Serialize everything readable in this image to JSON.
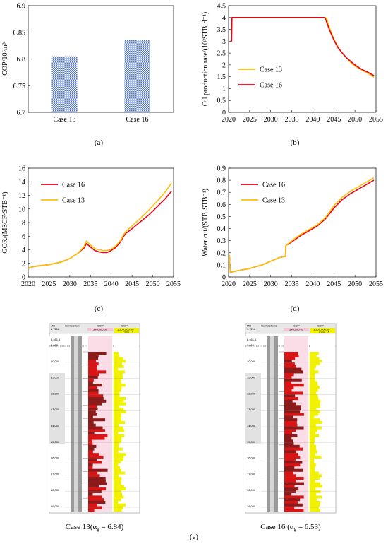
{
  "chart_data": [
    {
      "panel": "(a)",
      "type": "bar",
      "title": "",
      "ylabel": "COP/10⁶m³",
      "xlabel": "",
      "categories": [
        "Case 13",
        "Case 16"
      ],
      "values": [
        6.805,
        6.836
      ],
      "ylim": [
        6.7,
        6.9
      ],
      "yticks": [
        "6.7",
        "6.75",
        "6.8",
        "6.85",
        "6.9"
      ],
      "color": "#4a6fc5",
      "fill_pattern": "checkered",
      "grid": false
    },
    {
      "panel": "(b)",
      "type": "line",
      "ylabel": "Oil production rate/(10³STB·d⁻¹)",
      "xlabel": "",
      "xlim": [
        2020,
        2055
      ],
      "ylim": [
        0,
        4.5
      ],
      "xticks": [
        "2020",
        "2025",
        "2030",
        "2035",
        "2040",
        "2045",
        "2050",
        "2055"
      ],
      "yticks": [
        "0",
        "0.5",
        "1",
        "1.5",
        "2",
        "2.5",
        "3",
        "3.5",
        "4",
        "4.5"
      ],
      "legend_position": "left",
      "series": [
        {
          "name": "Case 13",
          "color": "#ffc000",
          "x": [
            2020.4,
            2020.7,
            2020.8,
            2043.0,
            2043.3,
            2044,
            2045,
            2046,
            2047,
            2048,
            2049,
            2050,
            2051,
            2052,
            2053,
            2054,
            2054.5
          ],
          "y": [
            3.0,
            3.0,
            4.0,
            4.0,
            3.95,
            3.55,
            3.1,
            2.75,
            2.5,
            2.3,
            2.1,
            1.95,
            1.85,
            1.75,
            1.65,
            1.55,
            1.48
          ]
        },
        {
          "name": "Case 16",
          "color": "#e8001c",
          "x": [
            2020.4,
            2020.7,
            2020.8,
            2042.8,
            2043.1,
            2044,
            2045,
            2046,
            2047,
            2048,
            2049,
            2050,
            2051,
            2052,
            2053,
            2054,
            2054.5
          ],
          "y": [
            3.0,
            3.0,
            4.0,
            4.0,
            3.9,
            3.45,
            3.05,
            2.72,
            2.5,
            2.3,
            2.15,
            2.0,
            1.88,
            1.78,
            1.7,
            1.6,
            1.55
          ]
        }
      ]
    },
    {
      "panel": "(c)",
      "type": "line",
      "ylabel": "GOR/(MSCF·STB⁻¹)",
      "xlabel": "",
      "xlim": [
        2020,
        2055
      ],
      "ylim": [
        0,
        16
      ],
      "xticks": [
        "2020",
        "2025",
        "2030",
        "2035",
        "2040",
        "2045",
        "2050",
        "2055"
      ],
      "yticks": [
        "0",
        "2",
        "4",
        "6",
        "8",
        "10",
        "12",
        "14",
        "16"
      ],
      "legend_position": "top-left",
      "series": [
        {
          "name": "Case 16",
          "color": "#e8001c",
          "x": [
            2020,
            2020.5,
            2022,
            2025,
            2028,
            2030,
            2032,
            2033.5,
            2034,
            2035,
            2036,
            2037,
            2038,
            2039,
            2040,
            2041,
            2042,
            2043,
            2043.5,
            2045,
            2047,
            2049,
            2051,
            2053,
            2054.5
          ],
          "y": [
            1.2,
            1.4,
            1.6,
            1.8,
            2.2,
            2.7,
            3.5,
            4.3,
            4.9,
            4.4,
            3.9,
            3.7,
            3.6,
            3.6,
            3.9,
            4.3,
            5.0,
            6.0,
            6.4,
            7.1,
            8.1,
            9.1,
            10.3,
            11.5,
            12.6
          ]
        },
        {
          "name": "Case 13",
          "color": "#ffc000",
          "x": [
            2020,
            2020.5,
            2022,
            2025,
            2028,
            2030,
            2032,
            2033.5,
            2034,
            2035,
            2036,
            2037,
            2038,
            2039,
            2040,
            2041,
            2042,
            2043,
            2043.5,
            2045,
            2047,
            2049,
            2051,
            2053,
            2054.5
          ],
          "y": [
            1.2,
            1.4,
            1.6,
            1.8,
            2.2,
            2.7,
            3.5,
            4.5,
            5.3,
            4.7,
            4.2,
            4.0,
            3.9,
            3.9,
            4.1,
            4.5,
            5.2,
            6.2,
            6.7,
            7.5,
            8.6,
            9.8,
            11.1,
            12.5,
            13.8
          ]
        }
      ]
    },
    {
      "panel": "(d)",
      "type": "line",
      "ylabel": "Water cut/(STB·STB⁻¹)",
      "xlabel": "",
      "xlim": [
        2020,
        2055
      ],
      "ylim": [
        0,
        0.9
      ],
      "xticks": [
        "2020",
        "2025",
        "2030",
        "2035",
        "2040",
        "2045",
        "2050",
        "2055"
      ],
      "yticks": [
        "0",
        "0.1",
        "0.2",
        "0.3",
        "0.4",
        "0.5",
        "0.6",
        "0.7",
        "0.8",
        "0.9"
      ],
      "legend_position": "top-left",
      "series": [
        {
          "name": "Case 16",
          "color": "#e8001c",
          "x": [
            2020.2,
            2020.4,
            2020.6,
            2022,
            2025,
            2028,
            2030,
            2032,
            2033.5,
            2033.6,
            2035,
            2037,
            2039,
            2041,
            2043,
            2045,
            2047,
            2049,
            2051,
            2053,
            2054.5
          ],
          "y": [
            0.18,
            0.04,
            0.04,
            0.05,
            0.07,
            0.1,
            0.13,
            0.16,
            0.17,
            0.26,
            0.29,
            0.34,
            0.38,
            0.42,
            0.48,
            0.57,
            0.64,
            0.69,
            0.73,
            0.77,
            0.8
          ]
        },
        {
          "name": "Case 13",
          "color": "#ffc000",
          "x": [
            2020.2,
            2020.4,
            2020.6,
            2022,
            2025,
            2028,
            2030,
            2032,
            2033.5,
            2033.6,
            2035,
            2037,
            2039,
            2041,
            2043,
            2045,
            2047,
            2049,
            2051,
            2053,
            2054.5
          ],
          "y": [
            0.18,
            0.04,
            0.04,
            0.05,
            0.07,
            0.1,
            0.13,
            0.16,
            0.17,
            0.26,
            0.3,
            0.35,
            0.39,
            0.43,
            0.49,
            0.59,
            0.66,
            0.71,
            0.75,
            0.79,
            0.82
          ]
        }
      ]
    }
  ],
  "panel_labels": [
    "(a)",
    "(b)",
    "(c)",
    "(d)",
    "(e)"
  ],
  "well_logs": {
    "left_caption": "Case 13(α",
    "right_caption": "Case 16 (α",
    "left_caption_tail": " = 6.84)",
    "right_caption_tail": " = 6.53)",
    "subscript": "g",
    "header": {
      "md": "MD",
      "completions": "Completions",
      "cop": "COP",
      "md_unit": "1:7216",
      "cop_range": "546,000.00",
      "cop_range2": "1,200,000.00",
      "case_left": "Case 13",
      "case_right": "Case 16"
    },
    "depth_labels": [
      "8,461.1",
      "9,000",
      "10,000",
      "11,000",
      "12,000",
      "13,000",
      "14,000",
      "15,000",
      "16,000",
      "17,000",
      "18,000",
      "19,000"
    ]
  }
}
